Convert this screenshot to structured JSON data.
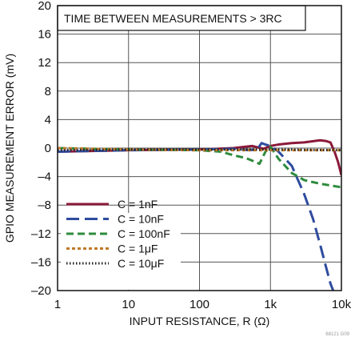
{
  "chart_data": {
    "type": "line",
    "annotation": "TIME BETWEEN MEASUREMENTS > 3RC",
    "xlabel": "INPUT RESISTANCE, R (Ω)",
    "ylabel": "GPIO MEASUREMENT ERROR (mV)",
    "x_scale": "log",
    "xlim": [
      1,
      10000
    ],
    "ylim": [
      -20,
      20
    ],
    "x_ticks": [
      1,
      10,
      100,
      1000,
      10000
    ],
    "x_tick_labels": [
      "1",
      "10",
      "100",
      "1k",
      "10k"
    ],
    "y_ticks": [
      20,
      16,
      12,
      8,
      4,
      0,
      -4,
      -8,
      -12,
      -16,
      -20
    ],
    "y_tick_labels": [
      "20",
      "16",
      "12",
      "8",
      "4",
      "0",
      "–4",
      "–8",
      "–12",
      "–16",
      "–20"
    ],
    "grid": true,
    "legend_position": "bottom-left",
    "figure_id": "68121 G09",
    "series": [
      {
        "name": "C = 1nF",
        "color": "#8b1a3a",
        "dash": "solid",
        "x": [
          1,
          10,
          100,
          300,
          550,
          800,
          1000,
          1300,
          2000,
          3000,
          5000,
          6000,
          7000,
          8000,
          9000,
          10000
        ],
        "y": [
          -0.5,
          -0.3,
          -0.2,
          0.0,
          0.3,
          -0.1,
          0.3,
          0.5,
          0.7,
          0.8,
          1.1,
          1.0,
          0.8,
          -0.5,
          -2.0,
          -3.8
        ]
      },
      {
        "name": "C = 10nF",
        "color": "#2e4b9e",
        "dash": "long-dash",
        "x": [
          1,
          10,
          100,
          300,
          500,
          650,
          750,
          850,
          1000,
          1300,
          2000,
          3000,
          4000,
          5000,
          6000,
          7000,
          8000,
          9000
        ],
        "y": [
          -0.5,
          -0.3,
          -0.2,
          -0.1,
          -0.3,
          -0.2,
          0.7,
          0.5,
          0.3,
          -0.5,
          -2.5,
          -6.5,
          -10.0,
          -13.5,
          -16.5,
          -19.0,
          -20.5,
          -21.0
        ]
      },
      {
        "name": "C = 100nF",
        "color": "#2e8b3e",
        "dash": "medium-dash",
        "x": [
          1,
          10,
          100,
          200,
          300,
          450,
          600,
          700,
          850,
          1000,
          1300,
          2000,
          3000,
          5000,
          10000
        ],
        "y": [
          0.0,
          -0.2,
          -0.3,
          -0.5,
          -1.0,
          -1.4,
          -1.9,
          -2.2,
          -0.5,
          0.2,
          -1.5,
          -3.5,
          -4.5,
          -5.0,
          -5.5
        ]
      },
      {
        "name": "C = 1μF",
        "color": "#c07a2a",
        "dash": "short-dash",
        "x": [
          1,
          10,
          100,
          1000,
          10000
        ],
        "y": [
          0.0,
          -0.2,
          -0.3,
          -0.3,
          -0.3
        ]
      },
      {
        "name": "C = 10μF",
        "color": "#222222",
        "dash": "dotted",
        "x": [
          1,
          10,
          100,
          1000,
          10000
        ],
        "y": [
          -0.3,
          -0.2,
          -0.2,
          -0.2,
          -0.3
        ]
      }
    ]
  }
}
